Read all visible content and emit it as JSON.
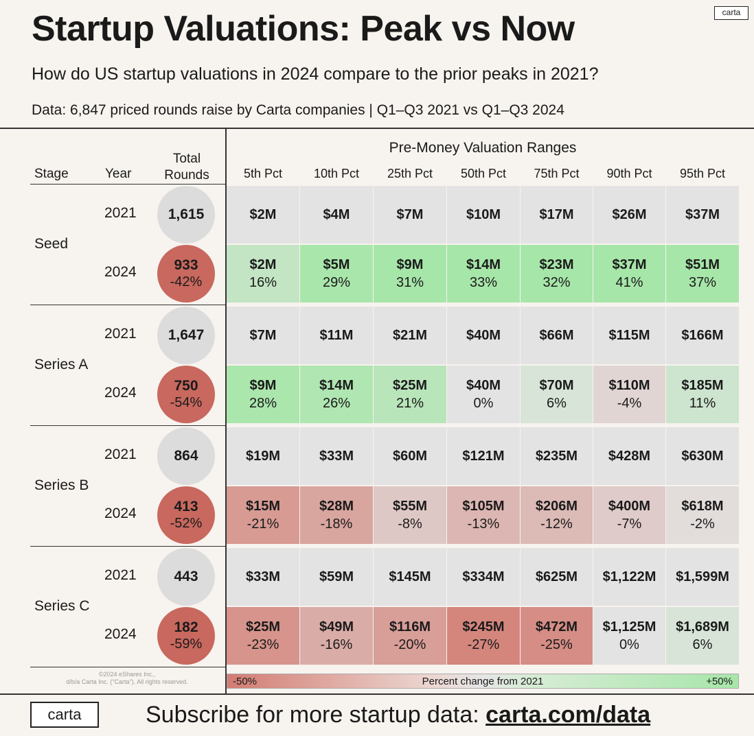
{
  "header": {
    "logo_small": "carta",
    "title": "Startup Valuations: Peak vs Now",
    "subtitle": "How do US startup valuations in 2024 compare to the prior peaks in 2021?",
    "source": "Data: 6,847 priced rounds raise by Carta companies | Q1–Q3 2021 vs Q1–Q3 2024"
  },
  "columns": {
    "stage": "Stage",
    "year": "Year",
    "total_rounds_1": "Total",
    "total_rounds_2": "Rounds",
    "range_header": "Pre-Money Valuation Ranges"
  },
  "colors": {
    "neutral": "#e3e3e3",
    "green_max": "#a7e6a9",
    "red_max": "#d27c72",
    "bubble_gray": "#dcdcdc",
    "bubble_red": "#c8685e"
  },
  "chart_data": {
    "type": "heatmap",
    "title": "Startup Valuations: Peak vs Now",
    "percentiles": [
      "5th Pct",
      "10th Pct",
      "25th Pct",
      "50th Pct",
      "75th Pct",
      "90th Pct",
      "95th Pct"
    ],
    "color_scale": {
      "min": -50,
      "max": 50,
      "min_label": "-50%",
      "max_label": "+50%",
      "label": "Percent change from 2021"
    },
    "stages": [
      {
        "stage": "Seed",
        "rows": [
          {
            "year": "2021",
            "rounds": "1,615",
            "values": [
              "$2M",
              "$4M",
              "$7M",
              "$10M",
              "$17M",
              "$26M",
              "$37M"
            ]
          },
          {
            "year": "2024",
            "rounds": "933",
            "rounds_change": "-42%",
            "values": [
              "$2M",
              "$5M",
              "$9M",
              "$14M",
              "$23M",
              "$37M",
              "$51M"
            ],
            "changes": [
              "16%",
              "29%",
              "31%",
              "33%",
              "32%",
              "41%",
              "37%"
            ],
            "change_nums": [
              16,
              29,
              31,
              33,
              32,
              41,
              37
            ]
          }
        ]
      },
      {
        "stage": "Series A",
        "rows": [
          {
            "year": "2021",
            "rounds": "1,647",
            "values": [
              "$7M",
              "$11M",
              "$21M",
              "$40M",
              "$66M",
              "$115M",
              "$166M"
            ]
          },
          {
            "year": "2024",
            "rounds": "750",
            "rounds_change": "-54%",
            "values": [
              "$9M",
              "$14M",
              "$25M",
              "$40M",
              "$70M",
              "$110M",
              "$185M"
            ],
            "changes": [
              "28%",
              "26%",
              "21%",
              "0%",
              "6%",
              "-4%",
              "11%"
            ],
            "change_nums": [
              28,
              26,
              21,
              0,
              6,
              -4,
              11
            ]
          }
        ]
      },
      {
        "stage": "Series B",
        "rows": [
          {
            "year": "2021",
            "rounds": "864",
            "values": [
              "$19M",
              "$33M",
              "$60M",
              "$121M",
              "$235M",
              "$428M",
              "$630M"
            ]
          },
          {
            "year": "2024",
            "rounds": "413",
            "rounds_change": "-52%",
            "values": [
              "$15M",
              "$28M",
              "$55M",
              "$105M",
              "$206M",
              "$400M",
              "$618M"
            ],
            "changes": [
              "-21%",
              "-18%",
              "-8%",
              "-13%",
              "-12%",
              "-7%",
              "-2%"
            ],
            "change_nums": [
              -21,
              -18,
              -8,
              -13,
              -12,
              -7,
              -2
            ]
          }
        ]
      },
      {
        "stage": "Series C",
        "rows": [
          {
            "year": "2021",
            "rounds": "443",
            "values": [
              "$33M",
              "$59M",
              "$145M",
              "$334M",
              "$625M",
              "$1,122M",
              "$1,599M"
            ]
          },
          {
            "year": "2024",
            "rounds": "182",
            "rounds_change": "-59%",
            "values": [
              "$25M",
              "$49M",
              "$116M",
              "$245M",
              "$472M",
              "$1,125M",
              "$1,689M"
            ],
            "changes": [
              "-23%",
              "-16%",
              "-20%",
              "-27%",
              "-25%",
              "0%",
              "6%"
            ],
            "change_nums": [
              -23,
              -16,
              -20,
              -27,
              -25,
              0,
              6
            ]
          }
        ]
      }
    ]
  },
  "legend": {
    "min_label": "-50%",
    "center_label": "Percent change from 2021",
    "max_label": "+50%"
  },
  "copyright": {
    "line1": "©2024 eShares Inc.,",
    "line2": "d/b/a Carta Inc. (\"Carta\"). All rights reserved."
  },
  "footer": {
    "logo": "carta",
    "text": "Subscribe for more startup data: ",
    "link": "carta.com/data"
  }
}
